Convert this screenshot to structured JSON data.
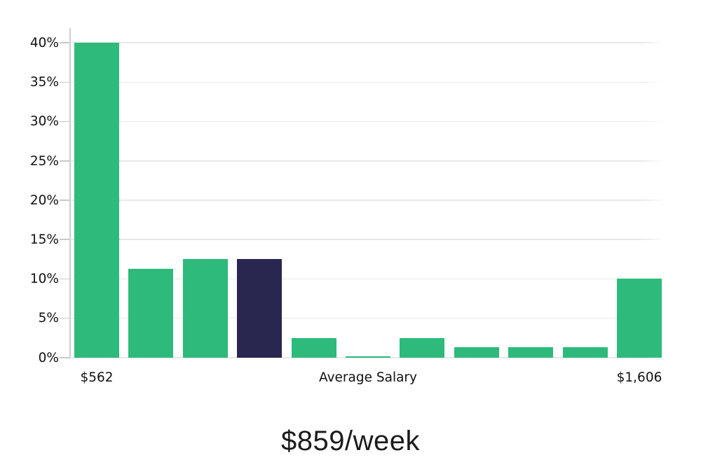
{
  "chart_data": {
    "type": "bar",
    "title": "$859/week",
    "description": "Weekly salary distribution histogram with highlighted average-salary bin",
    "values": [
      40,
      11.3,
      12.5,
      12.5,
      2.5,
      0.2,
      2.5,
      1.3,
      1.3,
      1.3,
      10
    ],
    "unit": "%",
    "highlight_index": 3,
    "y_ticks": [
      {
        "value": 0,
        "label": "0%"
      },
      {
        "value": 5,
        "label": "5%"
      },
      {
        "value": 10,
        "label": "10%"
      },
      {
        "value": 15,
        "label": "15%"
      },
      {
        "value": 20,
        "label": "20%"
      },
      {
        "value": 25,
        "label": "25%"
      },
      {
        "value": 30,
        "label": "30%"
      },
      {
        "value": 35,
        "label": "35%"
      },
      {
        "value": 40,
        "label": "40%"
      }
    ],
    "x_ticks": [
      {
        "bin_index": 0,
        "label": "$562"
      },
      {
        "bin_index": 5,
        "label": "Average Salary"
      },
      {
        "bin_index": 10,
        "label": "$1,606"
      }
    ],
    "ylim": [
      0,
      42
    ],
    "grid": true,
    "legend": false,
    "colors": {
      "bar": "#2eba7a",
      "highlight_bar": "#292650",
      "gridline": "#e8e8e8",
      "axis": "#c9c9c9",
      "text": "#111111"
    }
  }
}
